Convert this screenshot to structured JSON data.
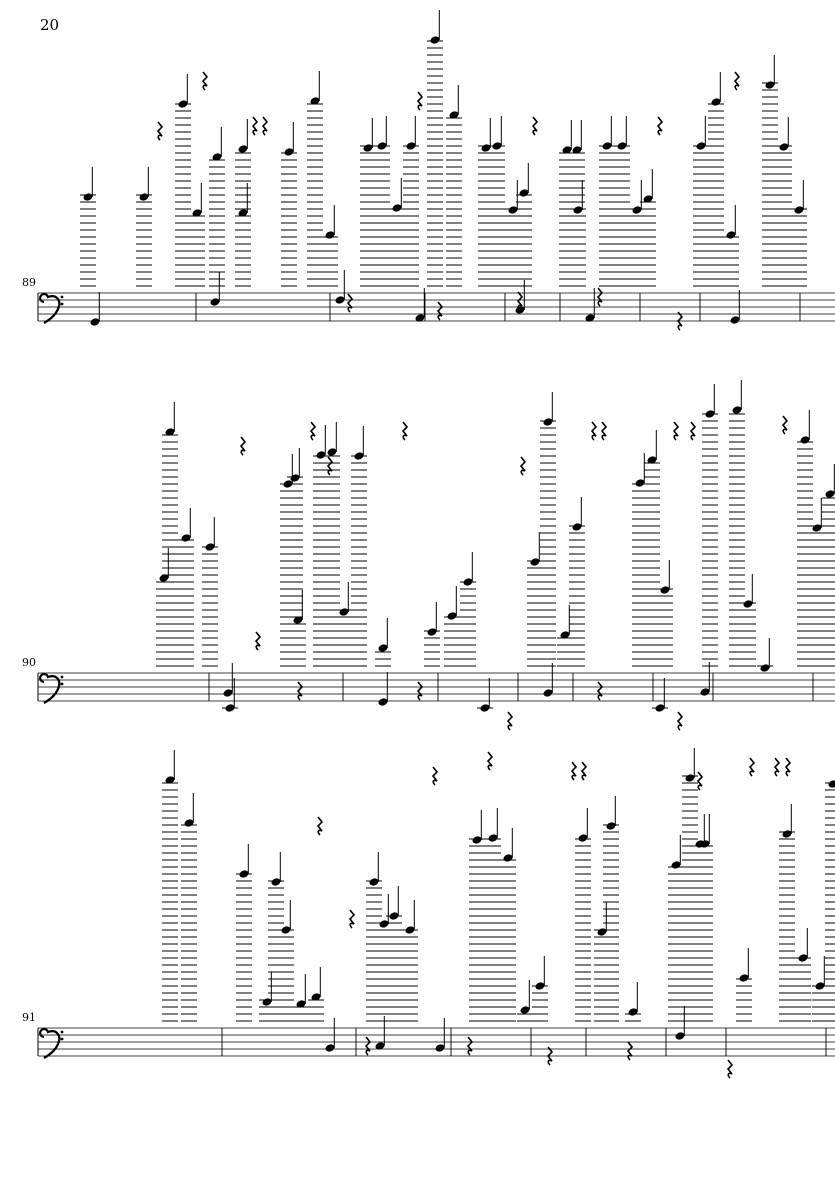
{
  "page": {
    "number": "20"
  },
  "systems": [
    {
      "measure_number": "89"
    },
    {
      "measure_number": "90"
    },
    {
      "measure_number": "91"
    }
  ],
  "clef": "bass-clef-icon",
  "ink_color": "#000000"
}
